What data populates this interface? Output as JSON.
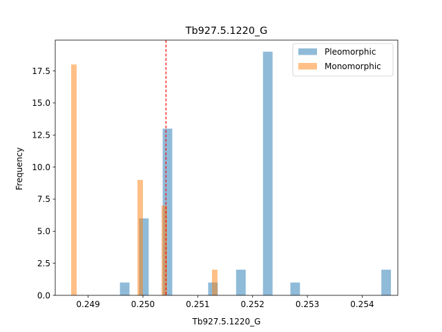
{
  "chart_data": {
    "type": "bar",
    "title": "Tb927.5.1220_G",
    "xlabel": "Tb927.5.1220_G",
    "ylabel": "Frequency",
    "xlim": [
      0.2484,
      0.25465
    ],
    "ylim": [
      0,
      19.9
    ],
    "xticks": [
      0.249,
      0.25,
      0.251,
      0.252,
      0.253,
      0.254
    ],
    "xtick_labels": [
      "0.249",
      "0.250",
      "0.251",
      "0.252",
      "0.253",
      "0.254"
    ],
    "yticks": [
      0.0,
      2.5,
      5.0,
      7.5,
      10.0,
      12.5,
      15.0,
      17.5
    ],
    "ytick_labels": [
      "0.0",
      "2.5",
      "5.0",
      "7.5",
      "10.0",
      "12.5",
      "15.0",
      "17.5"
    ],
    "grid": false,
    "legend_position": "top-right",
    "vline": {
      "x": 0.25042,
      "style": "dashed",
      "color": "#ff0000"
    },
    "series": [
      {
        "name": "Pleomorphic",
        "color": "#1f77b4",
        "opacity": 0.5,
        "bin_width": 0.000175,
        "bins": [
          {
            "x0": 0.24958,
            "count": 1
          },
          {
            "x0": 0.24993,
            "count": 6
          },
          {
            "x0": 0.25036,
            "count": 13
          },
          {
            "x0": 0.25119,
            "count": 1
          },
          {
            "x0": 0.2517,
            "count": 2
          },
          {
            "x0": 0.25219,
            "count": 19
          },
          {
            "x0": 0.25269,
            "count": 1
          },
          {
            "x0": 0.25435,
            "count": 2
          }
        ]
      },
      {
        "name": "Monomorphic",
        "color": "#ff7f0e",
        "opacity": 0.5,
        "bin_width": 0.0001,
        "bins": [
          {
            "x0": 0.24869,
            "count": 18
          },
          {
            "x0": 0.2499,
            "count": 9
          },
          {
            "x0": 0.25034,
            "count": 7
          },
          {
            "x0": 0.25126,
            "count": 2
          }
        ]
      }
    ]
  }
}
